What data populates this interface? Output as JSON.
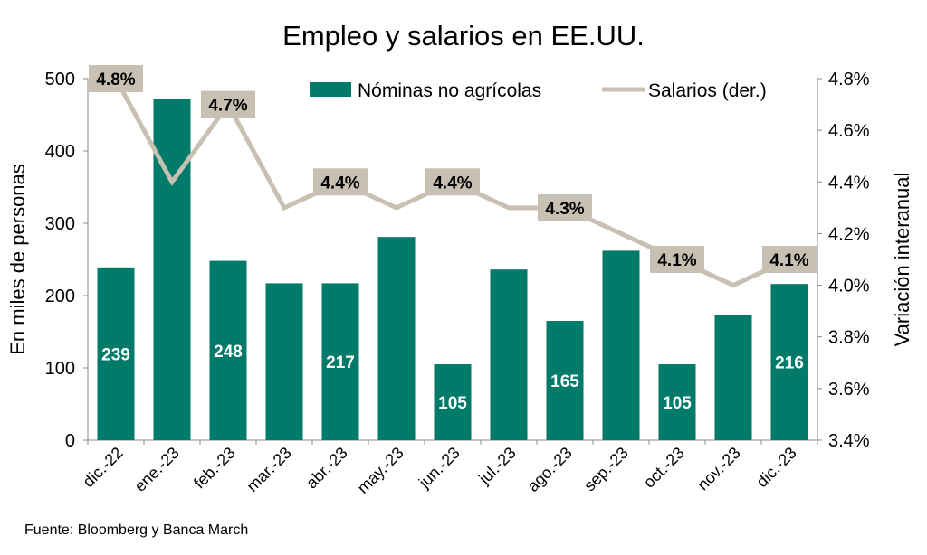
{
  "chart_data": {
    "type": "bar",
    "title": "Empleo y salarios en EE.UU.",
    "categories": [
      "dic.-22",
      "ene.-23",
      "feb.-23",
      "mar.-23",
      "abr.-23",
      "may.-23",
      "jun.-23",
      "jul.-23",
      "ago.-23",
      "sep.-23",
      "oct.-23",
      "nov.-23",
      "dic.-23"
    ],
    "ylabel": "En miles de personas",
    "y2label": "Variación interanual",
    "ylim": [
      0,
      500
    ],
    "yticks": [
      "0",
      "100",
      "200",
      "300",
      "400",
      "500"
    ],
    "y2lim": [
      3.4,
      4.8
    ],
    "y2ticks": [
      "3.4%",
      "3.6%",
      "3.8%",
      "4.0%",
      "4.2%",
      "4.4%",
      "4.6%",
      "4.8%"
    ],
    "legend_position": "top-right",
    "source": "Fuente: Bloomberg y Banca March",
    "series": [
      {
        "name": "Nóminas no agrícolas",
        "type": "bar",
        "axis": "left",
        "color": "#007A69",
        "values": [
          239,
          472,
          248,
          217,
          217,
          281,
          105,
          236,
          165,
          262,
          105,
          173,
          216
        ],
        "labels": [
          "239",
          "",
          "248",
          "",
          "217",
          "",
          "105",
          "",
          "165",
          "",
          "105",
          "",
          "216"
        ]
      },
      {
        "name": "Salarios (der.)",
        "type": "line",
        "axis": "right",
        "color": "#C9C0B4",
        "values": [
          4.8,
          4.4,
          4.7,
          4.3,
          4.4,
          4.3,
          4.4,
          4.3,
          4.3,
          4.2,
          4.1,
          4.0,
          4.1
        ],
        "labels": [
          "4.8%",
          "",
          "4.7%",
          "",
          "4.4%",
          "",
          "4.4%",
          "",
          "4.3%",
          "",
          "4.1%",
          "",
          "4.1%"
        ]
      }
    ]
  }
}
